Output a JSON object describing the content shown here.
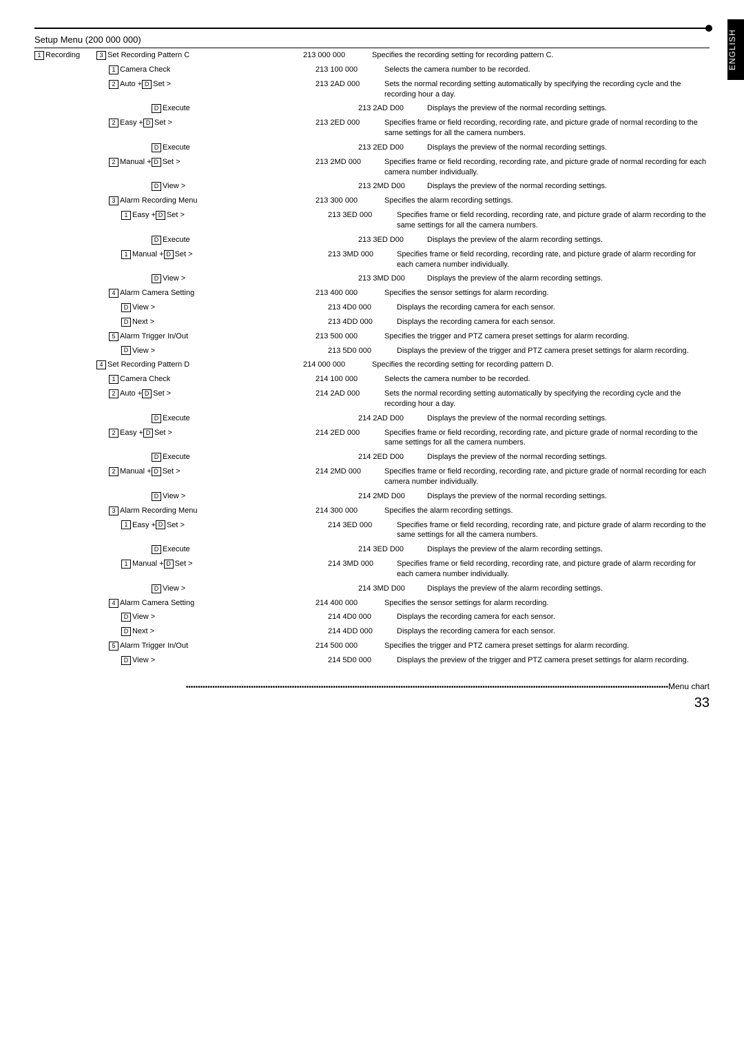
{
  "side_tab": "ENGLISH",
  "title": "Setup Menu (200 000 000)",
  "root_box": "1",
  "root_label": "Recording",
  "rows": [
    {
      "indent": 1,
      "pre": "3",
      "label": "Set Recording Pattern C",
      "code": "213 000 000",
      "desc": "Specifies the recording setting for recording pattern C."
    },
    {
      "indent": 2,
      "pre": "1",
      "label": "Camera Check",
      "code": "213 100 000",
      "desc": "Selects the camera number to be recorded."
    },
    {
      "indent": 2,
      "pre": "2",
      "label": "Auto + ",
      "pre2": "D",
      "label2": "Set >",
      "code": "213 2AD 000",
      "desc": "Sets the normal recording setting automatically by specifying the recording cycle and the recording hour a day."
    },
    {
      "indent": 4,
      "pre": "D",
      "label": "Execute",
      "code": "213 2AD D00",
      "desc": "Displays the preview of the normal recording settings."
    },
    {
      "indent": 2,
      "pre": "2",
      "label": "Easy + ",
      "pre2": "D",
      "label2": "Set >",
      "code": "213 2ED 000",
      "desc": "Specifies frame or field recording, recording rate, and picture grade of normal recording to the same settings for all the camera numbers."
    },
    {
      "indent": 4,
      "pre": "D",
      "label": "Execute",
      "code": "213 2ED D00",
      "desc": "Displays the preview of the normal recording settings."
    },
    {
      "indent": 2,
      "pre": "2",
      "label": "Manual + ",
      "pre2": "D",
      "label2": "Set >",
      "code": "213 2MD 000",
      "desc": "Specifies frame or field recording, recording rate, and picture grade of normal recording for each camera number individually."
    },
    {
      "indent": 4,
      "pre": "D",
      "label": "View >",
      "code": "213 2MD D00",
      "desc": "Displays the preview of the normal recording settings."
    },
    {
      "indent": 2,
      "pre": "3",
      "label": "Alarm Recording Menu",
      "code": "213 300 000",
      "desc": "Specifies the alarm recording settings."
    },
    {
      "indent": 3,
      "pre": "1",
      "label": "Easy + ",
      "pre2": "D",
      "label2": "Set >",
      "code": "213 3ED 000",
      "desc": "Specifies frame or field recording, recording rate, and picture grade of alarm recording to the same settings for all the camera numbers."
    },
    {
      "indent": 4,
      "pre": "D",
      "label": "Execute",
      "code": "213 3ED D00",
      "desc": "Displays the preview of the alarm recording settings."
    },
    {
      "indent": 3,
      "pre": "1",
      "label": "Manual + ",
      "pre2": "D",
      "label2": "Set >",
      "code": "213 3MD 000",
      "desc": "Specifies frame or field recording, recording rate, and picture grade of alarm recording for each camera number individually."
    },
    {
      "indent": 4,
      "pre": "D",
      "label": "View >",
      "code": "213 3MD D00",
      "desc": "Displays the preview of the alarm recording settings."
    },
    {
      "indent": 2,
      "pre": "4",
      "label": "Alarm Camera Setting",
      "code": "213 400 000",
      "desc": "Specifies the sensor settings for alarm recording."
    },
    {
      "indent": 3,
      "pre": "D",
      "label": "View >",
      "code": "213 4D0 000",
      "desc": "Displays the recording camera for each sensor."
    },
    {
      "indent": 3,
      "pre": "D",
      "label": "Next >",
      "code": "213 4DD 000",
      "desc": "Displays the recording camera for each sensor."
    },
    {
      "indent": 2,
      "pre": "5",
      "label": "Alarm Trigger In/Out",
      "code": "213 500 000",
      "desc": "Specifies the trigger and PTZ camera preset settings for alarm recording."
    },
    {
      "indent": 3,
      "pre": "D",
      "label": "View >",
      "code": "213 5D0 000",
      "desc": "Displays the preview of the trigger and PTZ camera preset settings for alarm recording."
    },
    {
      "indent": 1,
      "pre": "4",
      "label": "Set Recording Pattern D",
      "code": "214 000 000",
      "desc": "Specifies the recording setting for recording pattern D."
    },
    {
      "indent": 2,
      "pre": "1",
      "label": "Camera Check",
      "code": "214 100 000",
      "desc": "Selects the camera number to be recorded."
    },
    {
      "indent": 2,
      "pre": "2",
      "label": "Auto + ",
      "pre2": "D",
      "label2": "Set >",
      "code": "214 2AD 000",
      "desc": "Sets the normal recording setting automatically by specifying the recording cycle and the recording hour a day."
    },
    {
      "indent": 4,
      "pre": "D",
      "label": "Execute",
      "code": "214 2AD D00",
      "desc": "Displays the preview of the normal recording settings."
    },
    {
      "indent": 2,
      "pre": "2",
      "label": "Easy + ",
      "pre2": "D",
      "label2": "Set >",
      "code": "214 2ED 000",
      "desc": "Specifies frame or field recording, recording rate, and picture grade of normal recording to the same settings for all the camera numbers."
    },
    {
      "indent": 4,
      "pre": "D",
      "label": "Execute",
      "code": "214 2ED D00",
      "desc": "Displays the preview of the normal recording settings."
    },
    {
      "indent": 2,
      "pre": "2",
      "label": "Manual + ",
      "pre2": "D",
      "label2": "Set >",
      "code": "214 2MD 000",
      "desc": "Specifies frame or field recording, recording rate, and picture grade of normal recording for each camera number individually."
    },
    {
      "indent": 4,
      "pre": "D",
      "label": "View >",
      "code": "214 2MD D00",
      "desc": "Displays the preview of the normal recording settings."
    },
    {
      "indent": 2,
      "pre": "3",
      "label": "Alarm Recording Menu",
      "code": "214 300 000",
      "desc": "Specifies the alarm recording settings."
    },
    {
      "indent": 3,
      "pre": "1",
      "label": "Easy + ",
      "pre2": "D",
      "label2": "Set >",
      "code": "214 3ED 000",
      "desc": "Specifies frame or field recording, recording rate, and picture grade of alarm recording to the same settings for all the camera numbers."
    },
    {
      "indent": 4,
      "pre": "D",
      "label": "Execute",
      "code": "214 3ED D00",
      "desc": "Displays the preview of the alarm recording settings."
    },
    {
      "indent": 3,
      "pre": "1",
      "label": "Manual + ",
      "pre2": "D",
      "label2": "Set >",
      "code": "214 3MD 000",
      "desc": "Specifies frame or field recording, recording rate, and picture grade of alarm recording for each camera number individually."
    },
    {
      "indent": 4,
      "pre": "D",
      "label": "View >",
      "code": "214 3MD D00",
      "desc": "Displays the preview of the alarm recording settings."
    },
    {
      "indent": 2,
      "pre": "4",
      "label": "Alarm Camera Setting",
      "code": "214 400 000",
      "desc": "Specifies the sensor settings for alarm recording."
    },
    {
      "indent": 3,
      "pre": "D",
      "label": "View >",
      "code": "214 4D0 000",
      "desc": "Displays the recording camera for each sensor."
    },
    {
      "indent": 3,
      "pre": "D",
      "label": "Next >",
      "code": "214 4DD 000",
      "desc": "Displays the recording camera for each sensor."
    },
    {
      "indent": 2,
      "pre": "5",
      "label": "Alarm Trigger In/Out",
      "code": "214 500 000",
      "desc": "Specifies the trigger and PTZ camera preset settings for alarm recording."
    },
    {
      "indent": 3,
      "pre": "D",
      "label": "View >",
      "code": "214 5D0 000",
      "desc": "Displays the preview of the trigger and PTZ camera preset settings for alarm recording."
    }
  ],
  "footer_label": "Menu chart",
  "page_number": "33"
}
